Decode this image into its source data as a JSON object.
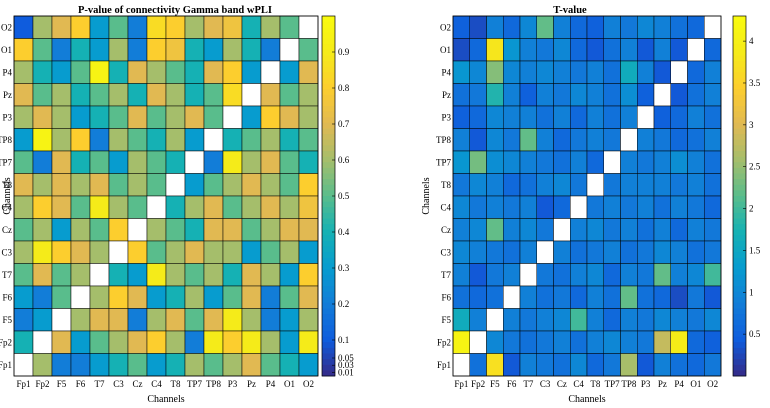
{
  "chart_data": [
    {
      "type": "heatmap",
      "title": "P-value of connectivity Gamma band wPLI",
      "xlabel": "Channels",
      "ylabel": "Channels",
      "x_categories": [
        "Fp1",
        "Fp2",
        "F5",
        "F6",
        "T7",
        "C3",
        "Cz",
        "C4",
        "T8",
        "TP7",
        "TP8",
        "P3",
        "Pz",
        "P4",
        "O1",
        "O2"
      ],
      "y_categories_bottom_to_top": [
        "Fp1",
        "Fp2",
        "F5",
        "F6",
        "T7",
        "C3",
        "Cz",
        "C4",
        "T8",
        "TP7",
        "TP8",
        "P3",
        "Pz",
        "P4",
        "O1",
        "O2"
      ],
      "colormap": "parula",
      "clim": [
        0,
        1
      ],
      "colorbar_ticks": [
        {
          "value": 0.01,
          "label": "0.01"
        },
        {
          "value": 0.03,
          "label": "0.03"
        },
        {
          "value": 0.05,
          "label": "0.05"
        },
        {
          "value": 0.1,
          "label": "0.1"
        },
        {
          "value": 0.2,
          "label": "0.2"
        },
        {
          "value": 0.3,
          "label": "0.3"
        },
        {
          "value": 0.4,
          "label": "0.4"
        },
        {
          "value": 0.5,
          "label": "0.5"
        },
        {
          "value": 0.6,
          "label": "0.6"
        },
        {
          "value": 0.7,
          "label": "0.7"
        },
        {
          "value": 0.8,
          "label": "0.8"
        },
        {
          "value": 0.9,
          "label": "0.9"
        }
      ],
      "diagonal": "blank",
      "values_top_to_bottom": [
        [
          0.1,
          0.6,
          0.7,
          0.8,
          0.3,
          0.5,
          0.2,
          0.85,
          0.8,
          0.6,
          0.7,
          0.75,
          0.4,
          0.6,
          0.5,
          null
        ],
        [
          0.8,
          0.5,
          0.2,
          0.4,
          0.3,
          0.6,
          0.2,
          0.8,
          0.75,
          0.4,
          0.3,
          0.6,
          0.4,
          0.2,
          null,
          0.5
        ],
        [
          0.6,
          0.4,
          0.3,
          0.5,
          0.95,
          0.4,
          0.7,
          0.6,
          0.5,
          0.4,
          0.7,
          0.8,
          0.3,
          null,
          0.3,
          0.7
        ],
        [
          0.7,
          0.5,
          0.6,
          0.4,
          0.5,
          0.6,
          0.4,
          0.7,
          0.6,
          0.4,
          0.5,
          0.85,
          null,
          0.7,
          0.5,
          0.6
        ],
        [
          0.6,
          0.7,
          0.6,
          0.3,
          0.4,
          0.5,
          0.7,
          0.5,
          0.6,
          0.7,
          0.5,
          null,
          0.3,
          0.8,
          0.7,
          0.6
        ],
        [
          0.3,
          0.95,
          0.6,
          0.8,
          0.2,
          0.6,
          0.5,
          0.4,
          0.6,
          0.3,
          null,
          0.4,
          0.5,
          0.6,
          0.4,
          0.5
        ],
        [
          0.5,
          0.2,
          0.7,
          0.4,
          0.5,
          0.3,
          0.6,
          0.5,
          0.4,
          null,
          0.2,
          0.9,
          0.6,
          0.7,
          0.5,
          0.4
        ],
        [
          0.7,
          0.6,
          0.7,
          0.6,
          0.7,
          0.5,
          0.6,
          0.5,
          null,
          0.3,
          0.5,
          0.6,
          0.7,
          0.6,
          0.5,
          0.8
        ],
        [
          0.6,
          0.8,
          0.7,
          0.5,
          0.9,
          0.6,
          0.5,
          null,
          0.4,
          0.6,
          0.7,
          0.5,
          0.6,
          0.7,
          0.6,
          0.75
        ],
        [
          0.5,
          0.6,
          0.3,
          0.6,
          0.5,
          0.8,
          null,
          0.6,
          0.5,
          0.4,
          0.7,
          0.7,
          0.5,
          0.6,
          0.7,
          0.7
        ],
        [
          0.6,
          0.9,
          0.8,
          0.7,
          0.6,
          null,
          0.8,
          0.5,
          0.6,
          0.7,
          0.6,
          0.6,
          0.3,
          0.5,
          0.6,
          0.3
        ],
        [
          0.5,
          0.7,
          0.5,
          0.6,
          null,
          0.4,
          0.3,
          0.9,
          0.6,
          0.5,
          0.6,
          0.4,
          0.7,
          0.6,
          0.3,
          0.8
        ],
        [
          0.3,
          0.2,
          0.5,
          null,
          0.6,
          0.8,
          0.7,
          0.3,
          0.4,
          0.6,
          0.3,
          0.5,
          0.7,
          0.2,
          0.5,
          0.7
        ],
        [
          0.2,
          0.3,
          null,
          0.6,
          0.7,
          0.7,
          0.2,
          0.6,
          0.7,
          0.5,
          0.7,
          0.9,
          0.6,
          0.2,
          0.3,
          0.6
        ],
        [
          0.4,
          null,
          0.7,
          0.3,
          0.5,
          0.6,
          0.7,
          0.8,
          0.6,
          0.2,
          0.9,
          0.8,
          0.9,
          0.6,
          0.3,
          0.9
        ],
        [
          null,
          0.6,
          0.2,
          0.2,
          0.3,
          0.4,
          0.5,
          0.3,
          0.4,
          0.6,
          0.5,
          0.6,
          0.7,
          0.5,
          0.4,
          0.3
        ]
      ]
    },
    {
      "type": "heatmap",
      "title": "T-value",
      "xlabel": "Channels",
      "ylabel": "Channels",
      "x_categories": [
        "Fp1",
        "Fp2",
        "F5",
        "F6",
        "T7",
        "C3",
        "Cz",
        "C4",
        "T8",
        "TP7",
        "TP8",
        "P3",
        "Pz",
        "P4",
        "O1",
        "O2"
      ],
      "y_categories_bottom_to_top": [
        "Fp1",
        "Fp2",
        "F5",
        "F6",
        "T7",
        "C3",
        "Cz",
        "C4",
        "T8",
        "TP7",
        "TP8",
        "P3",
        "Pz",
        "P4",
        "O1",
        "O2"
      ],
      "colormap": "parula",
      "clim": [
        0,
        4.3
      ],
      "colorbar_ticks": [
        {
          "value": 0.5,
          "label": "0.5"
        },
        {
          "value": 1,
          "label": "1"
        },
        {
          "value": 1.5,
          "label": "1.5"
        },
        {
          "value": 2,
          "label": "2"
        },
        {
          "value": 2.5,
          "label": "2.5"
        },
        {
          "value": 3,
          "label": "3"
        },
        {
          "value": 3.5,
          "label": "3.5"
        },
        {
          "value": 4,
          "label": "4"
        }
      ],
      "diagonal": "blank",
      "values_top_to_bottom": [
        [
          0.5,
          0.3,
          0.9,
          0.6,
          1.0,
          2.2,
          0.9,
          0.6,
          0.5,
          0.9,
          0.8,
          1.0,
          0.9,
          0.7,
          0.6,
          null
        ],
        [
          0.3,
          0.6,
          3.8,
          1.2,
          0.9,
          0.8,
          1.0,
          0.6,
          0.4,
          0.7,
          0.9,
          0.4,
          0.9,
          0.4,
          null,
          0.6
        ],
        [
          1.2,
          1.0,
          2.4,
          1.0,
          0.9,
          1.0,
          0.9,
          0.8,
          0.9,
          0.7,
          1.6,
          0.9,
          0.4,
          null,
          0.6,
          0.9
        ],
        [
          0.7,
          0.8,
          1.8,
          0.9,
          0.5,
          0.9,
          0.8,
          1.0,
          0.9,
          0.7,
          1.1,
          0.5,
          null,
          0.4,
          0.7,
          0.9
        ],
        [
          0.5,
          0.6,
          1.0,
          0.9,
          0.9,
          0.7,
          0.9,
          0.6,
          0.9,
          0.7,
          0.9,
          null,
          0.5,
          0.6,
          0.9,
          0.7
        ],
        [
          0.9,
          0.4,
          1.0,
          0.8,
          2.2,
          0.9,
          0.6,
          0.8,
          0.9,
          0.8,
          null,
          0.9,
          0.8,
          0.6,
          0.7,
          0.9
        ],
        [
          1.2,
          2.3,
          1.1,
          1.0,
          0.9,
          0.8,
          0.7,
          0.9,
          0.6,
          null,
          0.9,
          0.8,
          0.9,
          1.1,
          0.9,
          0.7
        ],
        [
          0.8,
          1.0,
          0.9,
          0.6,
          0.7,
          0.9,
          1.0,
          0.8,
          null,
          0.8,
          0.9,
          0.9,
          0.9,
          0.8,
          0.9,
          0.7
        ],
        [
          1.0,
          0.8,
          0.9,
          0.8,
          0.9,
          0.4,
          0.6,
          null,
          0.8,
          0.9,
          0.8,
          0.9,
          0.7,
          0.9,
          0.8,
          0.6
        ],
        [
          0.9,
          1.0,
          2.2,
          0.9,
          1.0,
          0.8,
          null,
          0.9,
          1.0,
          0.8,
          0.9,
          0.7,
          0.9,
          0.6,
          0.9,
          0.8
        ],
        [
          1.0,
          0.9,
          0.8,
          0.7,
          0.9,
          null,
          0.9,
          0.7,
          0.8,
          0.9,
          0.7,
          0.8,
          1.0,
          0.9,
          0.7,
          0.8
        ],
        [
          0.9,
          0.4,
          0.8,
          0.9,
          null,
          0.8,
          0.7,
          0.9,
          1.0,
          0.6,
          0.9,
          0.8,
          2.2,
          0.9,
          1.0,
          2.0
        ],
        [
          0.7,
          0.6,
          0.7,
          null,
          0.9,
          0.7,
          0.8,
          0.6,
          0.9,
          0.7,
          2.2,
          0.7,
          0.6,
          0.3,
          0.8,
          0.4
        ],
        [
          1.6,
          0.9,
          null,
          0.9,
          0.8,
          0.9,
          1.0,
          2.0,
          0.9,
          0.6,
          0.9,
          0.8,
          1.0,
          0.9,
          0.8,
          1.0
        ],
        [
          4.1,
          null,
          1.0,
          0.8,
          0.7,
          0.8,
          0.9,
          0.7,
          0.9,
          1.0,
          0.9,
          0.8,
          2.8,
          3.9,
          0.6,
          0.5
        ],
        [
          null,
          0.7,
          3.7,
          0.4,
          0.9,
          0.8,
          0.7,
          1.0,
          0.6,
          0.8,
          2.6,
          0.4,
          0.9,
          0.7,
          0.6,
          0.8
        ]
      ]
    }
  ]
}
